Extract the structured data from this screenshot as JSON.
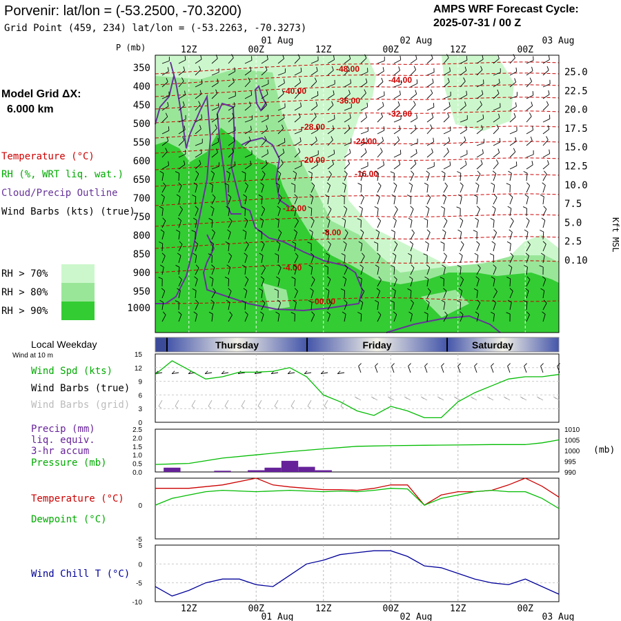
{
  "header": {
    "title": "Porvenir:  lat/lon = (-53.2500, -70.3200)",
    "grid_point": "Grid Point (459, 234) lat/lon = (-53.2263, -70.3273)",
    "forecast_line1": "AMPS WRF Forecast Cycle:",
    "forecast_line2": "2025-07-31 / 00  Z"
  },
  "left": {
    "model_grid_line1": "Model Grid ΔX:",
    "model_grid_line2": "6.000 km",
    "legend": {
      "temperature": "Temperature (°C)",
      "rh": "RH (%, WRT liq. wat.)",
      "cloud": "Cloud/Precip Outline",
      "wind": "Wind Barbs (kts) (true)"
    },
    "rh_levels": [
      "RH > 70%",
      "RH > 80%",
      "RH > 90%"
    ],
    "local_weekday": "Local Weekday",
    "wind_at": "Wind at 10 m",
    "wind_spd": "Wind Spd (kts)",
    "wind_true": "Wind Barbs (true)",
    "wind_grid": "Wind Barbs (grid)",
    "precip1": "Precip (mm)",
    "precip2": "liq. equiv.",
    "precip3": "3-hr accum",
    "pressure": "Pressure (mb)",
    "temp": "Temperature (°C)",
    "dewpoint": "Dewpoint (°C)",
    "windchill": "Wind Chill T (°C)"
  },
  "time_axis": {
    "top_dates": [
      "01 Aug",
      "02 Aug",
      "03 Aug"
    ],
    "tick_labels": [
      "12Z",
      "00Z",
      "12Z",
      "00Z",
      "12Z",
      "00Z"
    ],
    "bottom_labels": [
      "12Z",
      "00Z",
      "12Z",
      "00Z",
      "12Z",
      "00Z"
    ],
    "bottom_dates": [
      "01 Aug",
      "02 Aug",
      "03 Aug"
    ],
    "days": [
      "Thursday",
      "Friday",
      "Saturday"
    ]
  },
  "colors": {
    "rh70": "#ccf7cc",
    "rh80": "#99e699",
    "rh90": "#33cc33",
    "temperature": "#cc0000",
    "cloud": "#663399",
    "wind_spd": "#00bb00",
    "dewpoint": "#00bb00",
    "windchill": "#000099",
    "precip": "#662299",
    "grid_barbs": "#aaaaaa"
  },
  "chart_data": [
    {
      "type": "contour",
      "p_label": "P (mb)",
      "y_pressure_labels": [
        "350",
        "400",
        "450",
        "500",
        "550",
        "600",
        "650",
        "700",
        "750",
        "800",
        "850",
        "900",
        "950",
        "1000"
      ],
      "y_kft_labels": [
        "25.0",
        "22.5",
        "20.0",
        "17.5",
        "15.0",
        "12.5",
        "10.0",
        "7.5",
        "5.0",
        "2.5",
        "0.10"
      ],
      "ylabel_right": "Kft MSL",
      "temperature_labels": [
        "-48.00",
        "-44.00",
        "-40.00",
        "-36.00",
        "-32.00",
        "-28.00",
        "-24.00",
        "-20.00",
        "-16.00",
        "-12.00",
        "-8.00",
        "-4.00",
        "-00.00"
      ]
    },
    {
      "type": "line",
      "name": "Wind Spd (kts)",
      "yticks": [
        "15",
        "12",
        "9",
        "6",
        "3",
        "0"
      ],
      "ylim": [
        0,
        15
      ],
      "x_hours": [
        0,
        6,
        12,
        18,
        24,
        30,
        36,
        42,
        48,
        54,
        60,
        66,
        72,
        78,
        84,
        90,
        96,
        102,
        108,
        114,
        120,
        126,
        132,
        138,
        144
      ],
      "values": [
        10.5,
        13.5,
        11.5,
        9.5,
        10,
        11,
        11,
        11.2,
        12,
        10,
        6,
        4.5,
        2.5,
        1.5,
        3.5,
        2.5,
        1,
        1,
        4.5,
        6.5,
        8,
        9.5,
        10,
        10,
        10.5
      ]
    },
    {
      "type": "bar_line",
      "precip_yticks": [
        "2.5",
        "2.0",
        "1.5",
        "1.0",
        "0.5",
        "0.0"
      ],
      "precip_ylim": [
        0,
        2.5
      ],
      "pressure_yticks": [
        "1010",
        "1005",
        "1000",
        "995",
        "990"
      ],
      "pressure_ylim": [
        990,
        1010
      ],
      "pressure_unit": "(mb)",
      "precip_bars": [
        {
          "start": 3,
          "end": 9,
          "value": 0.25
        },
        {
          "start": 21,
          "end": 27,
          "value": 0.07
        },
        {
          "start": 33,
          "end": 39,
          "value": 0.1
        },
        {
          "start": 39,
          "end": 45,
          "value": 0.25
        },
        {
          "start": 45,
          "end": 51,
          "value": 0.65
        },
        {
          "start": 51,
          "end": 57,
          "value": 0.3
        },
        {
          "start": 57,
          "end": 63,
          "value": 0.1
        }
      ],
      "pressure_x": [
        0,
        12,
        24,
        36,
        48,
        60,
        72,
        84,
        96,
        108,
        120,
        132,
        138,
        144
      ],
      "pressure_values": [
        993.5,
        994,
        996.5,
        998,
        999.5,
        1000.8,
        1002,
        1002.3,
        1002.5,
        1002.6,
        1002.8,
        1002.8,
        1003.6,
        1005
      ]
    },
    {
      "type": "line",
      "yticks": [
        "0",
        "-5"
      ],
      "ylim": [
        -5,
        4
      ],
      "series": [
        {
          "name": "Temperature",
          "x": [
            0,
            12,
            24,
            36,
            42,
            48,
            54,
            60,
            66,
            72,
            78,
            84,
            90,
            96,
            102,
            108,
            114,
            120,
            126,
            132,
            138,
            144
          ],
          "values": [
            2.5,
            2.5,
            3,
            4,
            3,
            2.7,
            2.5,
            2.3,
            2.3,
            2.2,
            2.5,
            3,
            3,
            0,
            1.5,
            2,
            2,
            2.2,
            3,
            4,
            2.8,
            1.2
          ]
        },
        {
          "name": "Dewpoint",
          "x": [
            0,
            6,
            12,
            18,
            24,
            30,
            36,
            42,
            48,
            54,
            60,
            66,
            72,
            78,
            84,
            90,
            96,
            102,
            108,
            114,
            120,
            126,
            132,
            138,
            144
          ],
          "values": [
            0,
            1,
            1.5,
            2,
            2.2,
            2.1,
            2,
            2.1,
            2.2,
            2.1,
            2,
            2.1,
            2,
            2.2,
            2.5,
            2.4,
            0,
            1,
            1.5,
            2,
            2.2,
            2,
            2,
            1,
            -0.5
          ]
        }
      ]
    },
    {
      "type": "line",
      "name": "Wind Chill T",
      "yticks": [
        "5",
        "0",
        "-5",
        "-10"
      ],
      "ylim": [
        -10,
        5
      ],
      "x": [
        0,
        6,
        12,
        18,
        24,
        30,
        36,
        42,
        48,
        54,
        60,
        66,
        72,
        78,
        84,
        90,
        96,
        102,
        108,
        114,
        120,
        126,
        132,
        138,
        144
      ],
      "values": [
        -6,
        -8.5,
        -7,
        -5,
        -4,
        -4,
        -5.5,
        -6,
        -3,
        0,
        1,
        2.5,
        3,
        3.5,
        3.5,
        2,
        -0.5,
        -1,
        -2.5,
        -4,
        -5,
        -5.5,
        -4,
        -6,
        -8
      ]
    }
  ]
}
